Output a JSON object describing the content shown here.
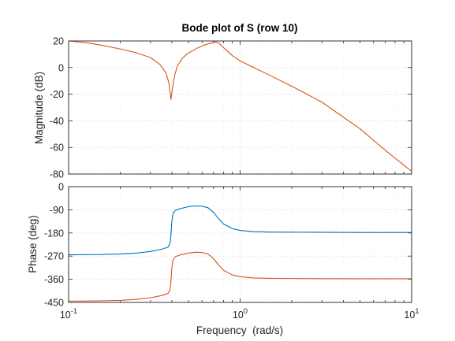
{
  "chart_data": {
    "type": "line",
    "title": "Bode plot of S (row 10)",
    "xlabel": "Frequency  (rad/s)",
    "xscale": "log",
    "xlim": [
      0.1,
      10
    ],
    "x_ticks": [
      {
        "value": 0.1,
        "base": "10",
        "exp": "-1"
      },
      {
        "value": 1,
        "base": "10",
        "exp": "0"
      },
      {
        "value": 10,
        "base": "10",
        "exp": "1"
      }
    ],
    "grid": true,
    "subplots": [
      {
        "ylabel": "Magnitude (dB)",
        "ylim": [
          -80,
          20
        ],
        "yticks": [
          20,
          0,
          -20,
          -40,
          -60,
          -80
        ],
        "series": [
          {
            "color": "#d95319",
            "x": [
              0.1,
              0.13,
              0.16,
              0.2,
              0.25,
              0.3,
              0.34,
              0.37,
              0.385,
              0.395,
              0.405,
              0.415,
              0.43,
              0.46,
              0.5,
              0.56,
              0.62,
              0.68,
              0.72,
              0.75,
              0.8,
              0.9,
              1.0,
              1.2,
              1.5,
              2,
              3,
              5,
              7,
              10
            ],
            "y": [
              20,
              18.5,
              16.5,
              14,
              11,
              7.5,
              2.5,
              -4,
              -12,
              -24,
              -14,
              -6,
              1,
              7,
              11,
              14.5,
              17,
              18.5,
              19.3,
              18.5,
              15,
              9,
              5,
              0,
              -6,
              -14,
              -26,
              -46,
              -62,
              -78
            ]
          }
        ]
      },
      {
        "ylabel": "Phase (deg)",
        "ylim": [
          -450,
          0
        ],
        "yticks": [
          0,
          -90,
          -180,
          -270,
          -360,
          -450
        ],
        "series": [
          {
            "color": "#0072bd",
            "x": [
              0.1,
              0.15,
              0.2,
              0.25,
              0.3,
              0.35,
              0.38,
              0.39,
              0.395,
              0.4,
              0.405,
              0.41,
              0.42,
              0.45,
              0.5,
              0.55,
              0.6,
              0.65,
              0.7,
              0.75,
              0.8,
              0.9,
              1.0,
              1.2,
              1.5,
              2,
              3,
              5,
              10
            ],
            "y": [
              -265,
              -264,
              -262,
              -258,
              -252,
              -243,
              -235,
              -222,
              -190,
              -135,
              -110,
              -100,
              -92,
              -85,
              -78,
              -75,
              -76,
              -82,
              -100,
              -125,
              -145,
              -163,
              -170,
              -175,
              -176.5,
              -177,
              -177.5,
              -178,
              -178
            ]
          },
          {
            "color": "#d95319",
            "x": [
              0.1,
              0.15,
              0.2,
              0.25,
              0.3,
              0.35,
              0.38,
              0.39,
              0.395,
              0.4,
              0.405,
              0.41,
              0.42,
              0.45,
              0.5,
              0.55,
              0.6,
              0.65,
              0.7,
              0.75,
              0.8,
              0.9,
              1.0,
              1.2,
              1.5,
              2,
              3,
              5,
              10
            ],
            "y": [
              -445,
              -444,
              -442,
              -438,
              -432,
              -423,
              -415,
              -402,
              -370,
              -315,
              -290,
              -280,
              -272,
              -265,
              -258,
              -255,
              -256,
              -262,
              -280,
              -305,
              -325,
              -343,
              -350,
              -355,
              -356.5,
              -357,
              -357.5,
              -358,
              -358
            ]
          }
        ]
      }
    ]
  }
}
